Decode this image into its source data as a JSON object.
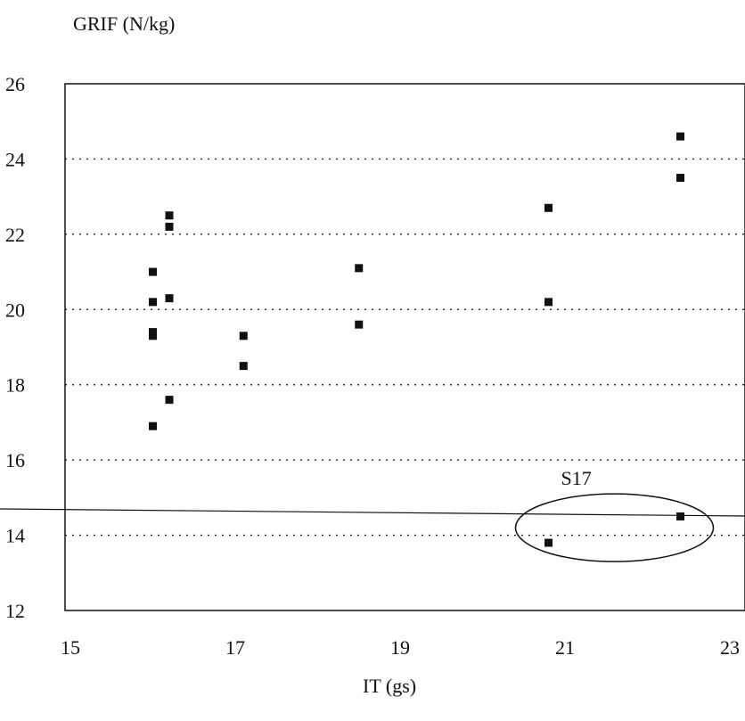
{
  "chart_data": {
    "type": "scatter",
    "ylabel": "GRIF (N/kg)",
    "xlabel": "IT (gs)",
    "xlim": [
      15,
      23
    ],
    "ylim": [
      12,
      26
    ],
    "x_ticks": [
      "15",
      "17",
      "19",
      "21",
      "23"
    ],
    "y_ticks": [
      "12",
      "14",
      "16",
      "18",
      "20",
      "22",
      "24",
      "26"
    ],
    "x_tick_values": [
      15,
      17,
      19,
      21,
      23
    ],
    "y_tick_values": [
      12,
      14,
      16,
      18,
      20,
      22,
      24,
      26
    ],
    "gridlines_y": [
      14,
      16,
      18,
      20,
      22,
      24
    ],
    "grid": "horizontal dotted",
    "marker": "filled square",
    "marker_color": "#111111",
    "points": [
      {
        "x": 16.0,
        "y": 21.0
      },
      {
        "x": 16.0,
        "y": 20.2
      },
      {
        "x": 16.0,
        "y": 19.4
      },
      {
        "x": 16.0,
        "y": 19.3
      },
      {
        "x": 16.0,
        "y": 16.9
      },
      {
        "x": 16.2,
        "y": 22.5
      },
      {
        "x": 16.2,
        "y": 22.2
      },
      {
        "x": 16.2,
        "y": 20.3
      },
      {
        "x": 16.2,
        "y": 17.6
      },
      {
        "x": 17.1,
        "y": 19.3
      },
      {
        "x": 17.1,
        "y": 18.5
      },
      {
        "x": 18.5,
        "y": 21.1
      },
      {
        "x": 18.5,
        "y": 19.6
      },
      {
        "x": 20.8,
        "y": 22.7
      },
      {
        "x": 20.8,
        "y": 20.2
      },
      {
        "x": 20.8,
        "y": 13.8
      },
      {
        "x": 22.4,
        "y": 24.6
      },
      {
        "x": 22.4,
        "y": 23.5
      },
      {
        "x": 22.4,
        "y": 14.5
      }
    ],
    "annotation": {
      "label": "S17",
      "ellipse_center": {
        "x": 21.6,
        "y": 14.2
      },
      "ellipse_radius": {
        "x": 1.2,
        "y": 0.9
      }
    },
    "reference_line_y": 14.7
  }
}
